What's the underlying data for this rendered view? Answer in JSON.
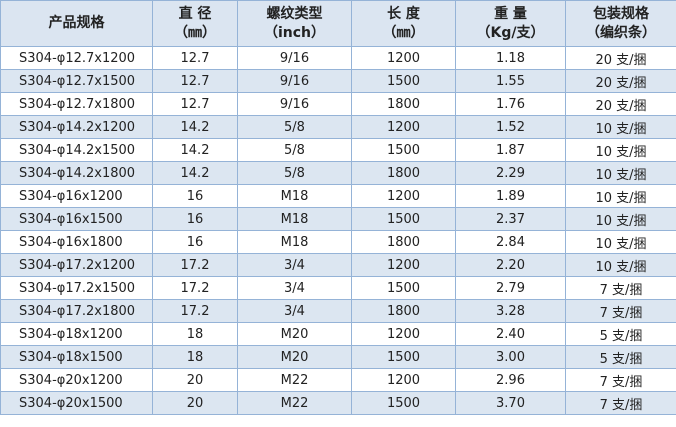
{
  "table": {
    "header": [
      [
        "产品规格"
      ],
      [
        "直 径",
        "（㎜）"
      ],
      [
        "螺纹类型",
        "（inch）"
      ],
      [
        "长 度",
        "（㎜）"
      ],
      [
        "重 量",
        "（Kg/支）"
      ],
      [
        "包装规格",
        "（编织条）"
      ]
    ],
    "rows": [
      [
        "S304-φ12.7x1200",
        "12.7",
        "9/16",
        "1200",
        "1.18",
        "20 支/捆"
      ],
      [
        "S304-φ12.7x1500",
        "12.7",
        "9/16",
        "1500",
        "1.55",
        "20 支/捆"
      ],
      [
        "S304-φ12.7x1800",
        "12.7",
        "9/16",
        "1800",
        "1.76",
        "20 支/捆"
      ],
      [
        "S304-φ14.2x1200",
        "14.2",
        "5/8",
        "1200",
        "1.52",
        "10 支/捆"
      ],
      [
        "S304-φ14.2x1500",
        "14.2",
        "5/8",
        "1500",
        "1.87",
        "10 支/捆"
      ],
      [
        "S304-φ14.2x1800",
        "14.2",
        "5/8",
        "1800",
        "2.29",
        "10 支/捆"
      ],
      [
        "S304-φ16x1200",
        "16",
        "M18",
        "1200",
        "1.89",
        "10 支/捆"
      ],
      [
        "S304-φ16x1500",
        "16",
        "M18",
        "1500",
        "2.37",
        "10 支/捆"
      ],
      [
        "S304-φ16x1800",
        "16",
        "M18",
        "1800",
        "2.84",
        "10 支/捆"
      ],
      [
        "S304-φ17.2x1200",
        "17.2",
        "3/4",
        "1200",
        "2.20",
        "10 支/捆"
      ],
      [
        "S304-φ17.2x1500",
        "17.2",
        "3/4",
        "1500",
        "2.79",
        "7 支/捆"
      ],
      [
        "S304-φ17.2x1800",
        "17.2",
        "3/4",
        "1800",
        "3.28",
        "7 支/捆"
      ],
      [
        "S304-φ18x1200",
        "18",
        "M20",
        "1200",
        "2.40",
        "5 支/捆"
      ],
      [
        "S304-φ18x1500",
        "18",
        "M20",
        "1500",
        "3.00",
        "5 支/捆"
      ],
      [
        "S304-φ20x1200",
        "20",
        "M22",
        "1200",
        "2.96",
        "7 支/捆"
      ],
      [
        "S304-φ20x1500",
        "20",
        "M22",
        "1500",
        "3.70",
        "7 支/捆"
      ]
    ]
  }
}
